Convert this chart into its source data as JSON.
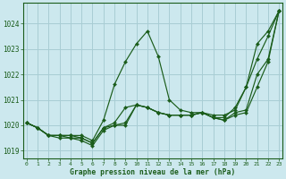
{
  "xlabel": "Graphe pression niveau de la mer (hPa)",
  "ylim": [
    1018.7,
    1024.8
  ],
  "xlim": [
    -0.3,
    23.3
  ],
  "yticks": [
    1019,
    1020,
    1021,
    1022,
    1023,
    1024
  ],
  "xtick_labels": [
    "0",
    "1",
    "2",
    "3",
    "4",
    "5",
    "6",
    "7",
    "8",
    "9",
    "10",
    "11",
    "12",
    "13",
    "14",
    "15",
    "16",
    "17",
    "18",
    "19",
    "20",
    "21",
    "22",
    "23"
  ],
  "xticks": [
    0,
    1,
    2,
    3,
    4,
    5,
    6,
    7,
    8,
    9,
    10,
    11,
    12,
    13,
    14,
    15,
    16,
    17,
    18,
    19,
    20,
    21,
    22,
    23
  ],
  "background_color": "#cce8ee",
  "grid_color": "#a8cdd4",
  "line_color": "#1a5c1a",
  "series": [
    {
      "x": [
        0,
        1,
        2,
        3,
        4,
        5,
        6,
        7,
        8,
        9,
        10,
        11,
        12,
        13,
        14,
        15,
        16,
        17,
        18,
        19,
        20,
        21,
        22,
        23
      ],
      "y": [
        1020.1,
        1019.9,
        1019.6,
        1019.6,
        1019.6,
        1019.6,
        1019.4,
        1020.2,
        1021.6,
        1022.5,
        1023.2,
        1023.7,
        1022.7,
        1021.0,
        1020.6,
        1020.5,
        1020.5,
        1020.3,
        1020.3,
        1020.7,
        1021.5,
        1023.2,
        1023.7,
        1024.5
      ]
    },
    {
      "x": [
        0,
        1,
        2,
        3,
        4,
        5,
        6,
        7,
        8,
        9,
        10,
        11,
        12,
        13,
        14,
        15,
        16,
        17,
        18,
        19,
        20,
        21,
        22,
        23
      ],
      "y": [
        1020.1,
        1019.9,
        1019.6,
        1019.6,
        1019.6,
        1019.5,
        1019.3,
        1019.9,
        1020.1,
        1020.7,
        1020.8,
        1020.7,
        1020.5,
        1020.4,
        1020.4,
        1020.4,
        1020.5,
        1020.4,
        1020.4,
        1020.6,
        1021.5,
        1022.6,
        1023.5,
        1024.5
      ]
    },
    {
      "x": [
        0,
        1,
        2,
        3,
        4,
        5,
        6,
        7,
        8,
        9,
        10,
        11,
        12,
        13,
        14,
        15,
        16,
        17,
        18,
        19,
        20,
        21,
        22,
        23
      ],
      "y": [
        1020.1,
        1019.9,
        1019.6,
        1019.6,
        1019.5,
        1019.5,
        1019.3,
        1019.9,
        1020.0,
        1020.1,
        1020.8,
        1020.7,
        1020.5,
        1020.4,
        1020.4,
        1020.4,
        1020.5,
        1020.3,
        1020.2,
        1020.5,
        1020.6,
        1022.0,
        1022.6,
        1024.5
      ]
    },
    {
      "x": [
        0,
        1,
        2,
        3,
        4,
        5,
        6,
        7,
        8,
        9,
        10,
        11,
        12,
        13,
        14,
        15,
        16,
        17,
        18,
        19,
        20,
        21,
        22,
        23
      ],
      "y": [
        1020.1,
        1019.9,
        1019.6,
        1019.5,
        1019.5,
        1019.4,
        1019.2,
        1019.8,
        1020.0,
        1020.0,
        1020.8,
        1020.7,
        1020.5,
        1020.4,
        1020.4,
        1020.4,
        1020.5,
        1020.3,
        1020.2,
        1020.4,
        1020.5,
        1021.5,
        1022.5,
        1024.5
      ]
    }
  ]
}
